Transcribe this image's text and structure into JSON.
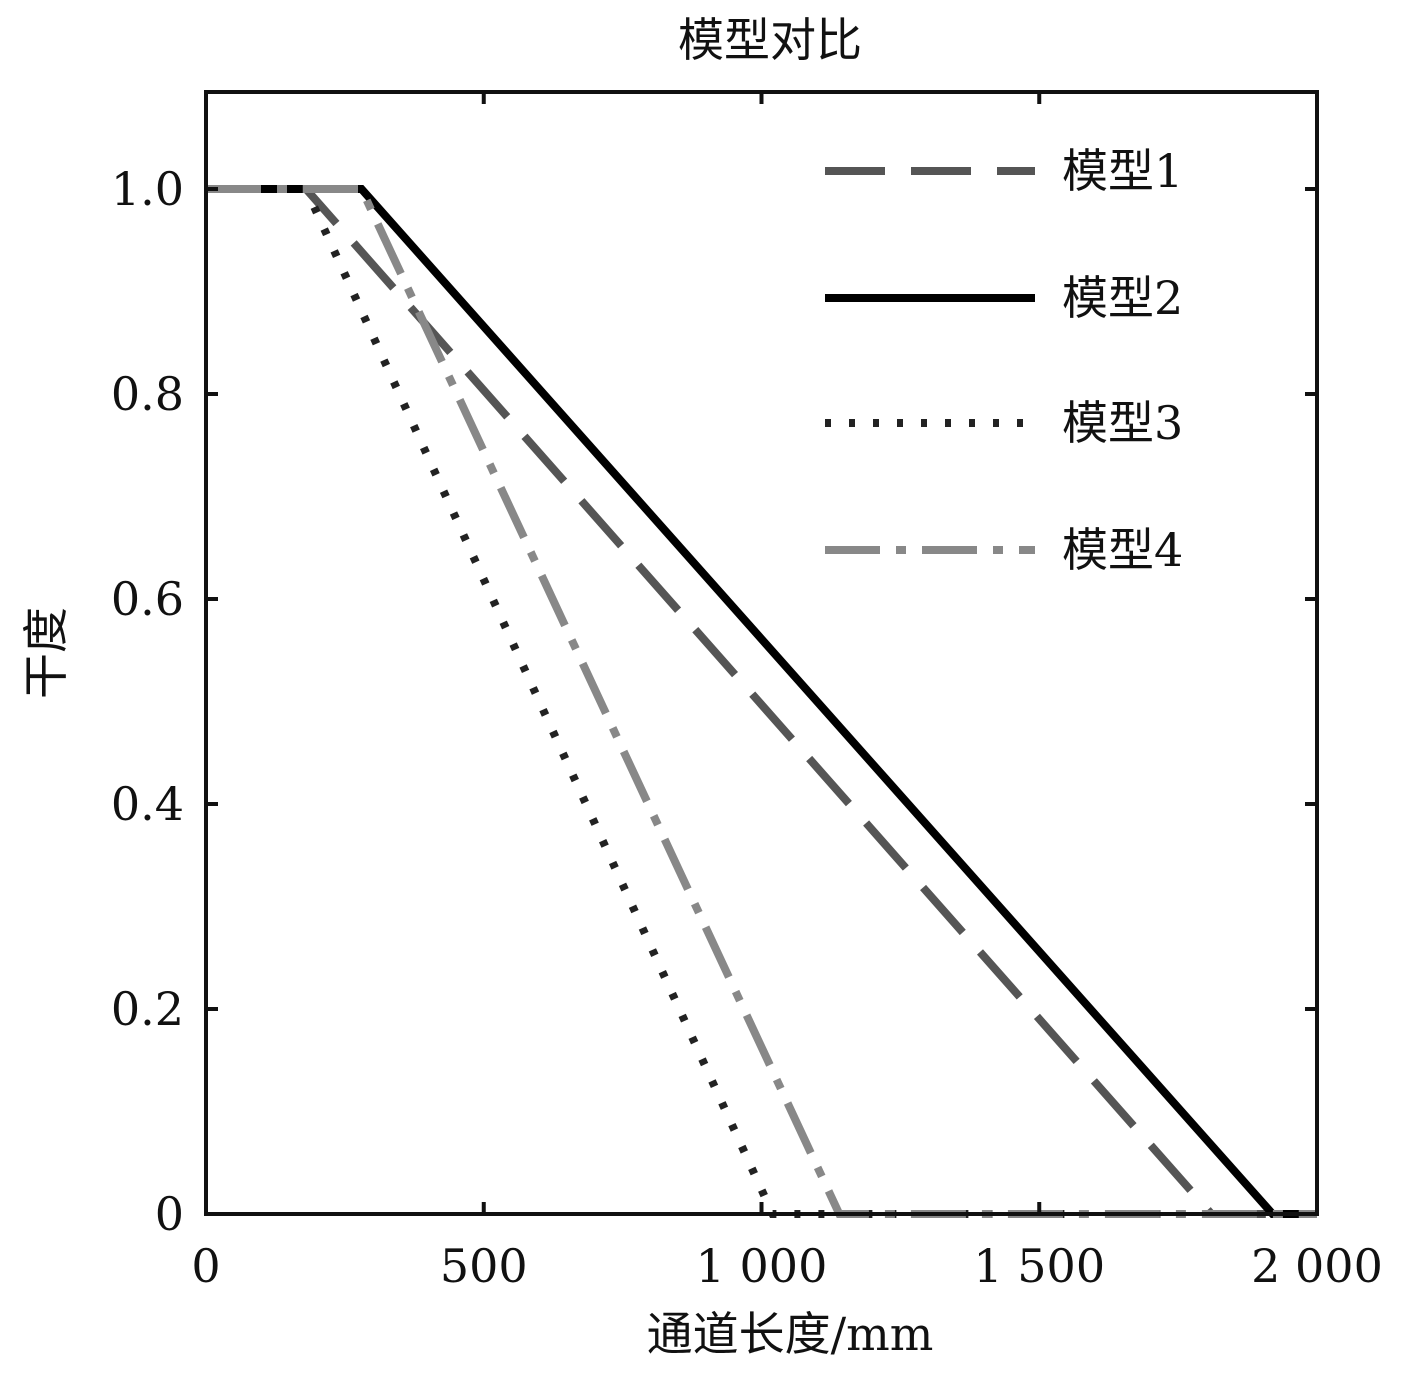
{
  "chart_data": {
    "type": "line",
    "title": "模型对比",
    "xlabel": "通道长度/mm",
    "ylabel": "干度",
    "xlim": [
      0,
      2000
    ],
    "ylim": [
      0,
      1.1
    ],
    "x_ticks": [
      0,
      500,
      1000,
      1500,
      2000
    ],
    "x_tick_labels": [
      "0",
      "500",
      "1 000",
      "1 500",
      "2 000"
    ],
    "y_ticks": [
      0,
      0.2,
      0.4,
      0.6,
      0.8,
      1.0
    ],
    "y_tick_labels": [
      "0",
      "0.2",
      "0.4",
      "0.6",
      "0.8",
      "1.0"
    ],
    "grid": false,
    "legend_position": "top-right",
    "series": [
      {
        "name": "模型1",
        "color": "#555555",
        "style": "dashed",
        "x": [
          0,
          180,
          1810,
          2000
        ],
        "y": [
          1.0,
          1.0,
          0.0,
          0.0
        ]
      },
      {
        "name": "模型2",
        "color": "#000000",
        "style": "solid",
        "x": [
          0,
          280,
          1920,
          2000
        ],
        "y": [
          1.0,
          1.0,
          0.0,
          0.0
        ]
      },
      {
        "name": "模型3",
        "color": "#222222",
        "style": "dotted",
        "x": [
          0,
          180,
          1020,
          2000
        ],
        "y": [
          1.0,
          1.0,
          0.0,
          0.0
        ]
      },
      {
        "name": "模型4",
        "color": "#888888",
        "style": "dashdot",
        "x": [
          0,
          280,
          1140,
          2000
        ],
        "y": [
          1.0,
          1.0,
          0.0,
          0.0
        ]
      }
    ]
  }
}
